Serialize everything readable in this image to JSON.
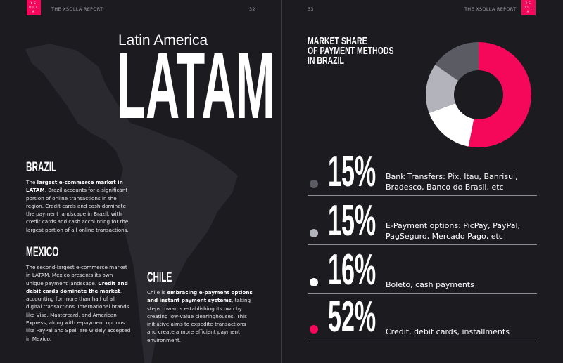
{
  "header": {
    "left_title": "THE XSOLLA REPORT",
    "left_page": "32",
    "right_page": "33",
    "right_title": "THE XSOLLA REPORT",
    "logo": "XSOLLA"
  },
  "left": {
    "kicker": "Latin America",
    "title": "LATAM",
    "brazil": {
      "heading": "BRAZIL",
      "text": [
        "The ",
        "largest e-commerce market in LATAM",
        ", Brazil accounts for a significant portion of online transactions in the region. Credit cards and cash dominate the payment landscape in Brazil, with credit cards and cash accounting for the largest portion of all online transactions."
      ]
    },
    "mexico": {
      "heading": "MEXICO",
      "text": [
        "The second-largest e-commerce market in LATAM, Mexico presents its own unique payment landscape. ",
        "Credit and debit cards dominate the market",
        ", accounting for more than half of all digital transactions. International brands like Visa, Mastercard, and American Express, along with e-payment options like PayPal and Spei, are widely accepted in Mexico."
      ]
    },
    "chile": {
      "heading": "CHILE",
      "text": [
        "Chile is ",
        "embracing e-payment options and instant payment systems",
        ", taking steps towards establishing its own by creating low-value clearinghouses. This initiative aims to expedite transactions and create a more efficient payment environment."
      ]
    }
  },
  "chart_data": {
    "type": "donut",
    "title": [
      "MARKET SHARE",
      "OF PAYMENT METHODS",
      "IN BRAZIL"
    ],
    "categories": [
      "Bank Transfers: Pix, Itau, Banrisul, Bradesco, Banco do Brasil, etc",
      "E-Payment options: PicPay, PayPal, PagSeguro, Mercado Pago, etc",
      "Boleto, cash payments",
      "Credit, debit cards, installments"
    ],
    "values": [
      15,
      15,
      16,
      52
    ],
    "value_labels": [
      "15%",
      "15%",
      "16%",
      "52%"
    ],
    "colors": [
      "#5b5b64",
      "#b3b3bb",
      "#ffffff",
      "#f5075a"
    ]
  }
}
